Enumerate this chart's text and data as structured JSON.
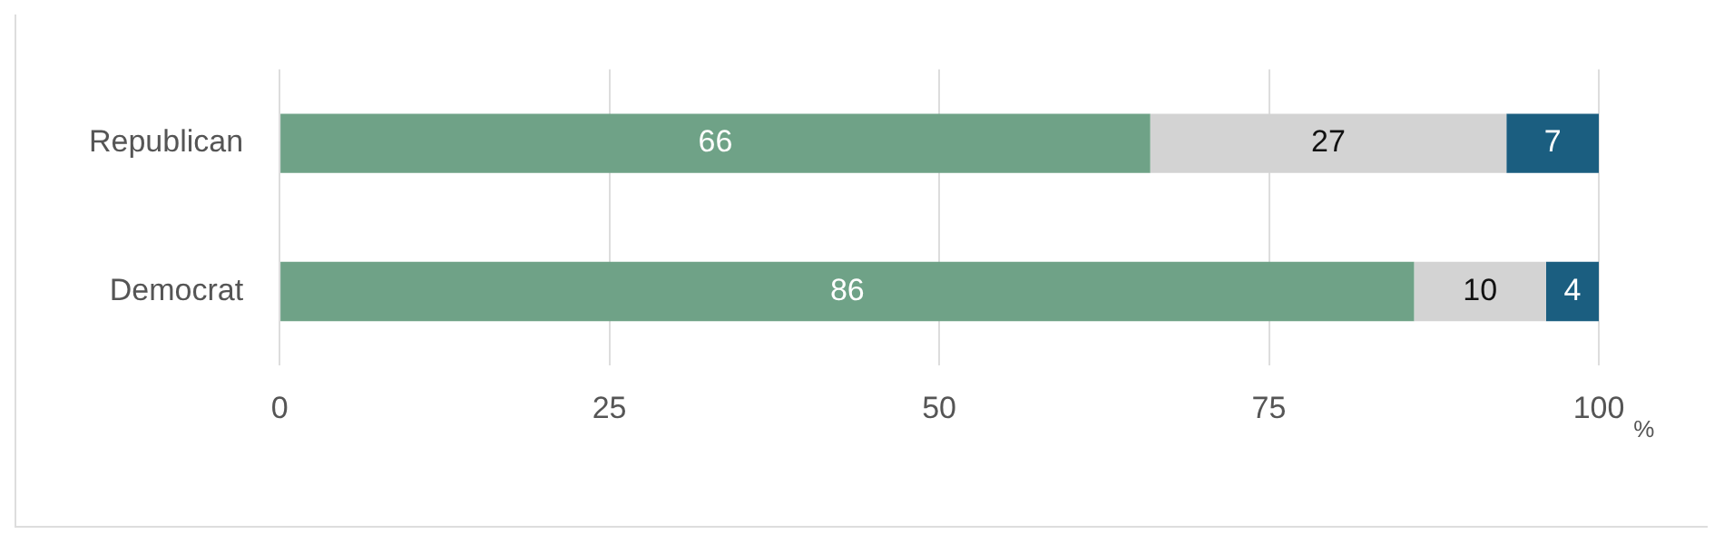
{
  "chart_data": {
    "type": "bar",
    "orientation": "horizontal",
    "stacked": true,
    "categories": [
      "Republican",
      "Democrat"
    ],
    "series": [
      {
        "color": "#6fa287",
        "values": [
          66,
          86
        ]
      },
      {
        "color": "#d3d3d3",
        "values": [
          27,
          10
        ]
      },
      {
        "color": "#1b5e80",
        "values": [
          7,
          4
        ]
      }
    ],
    "xlabel": "%",
    "xlim": [
      0,
      100
    ],
    "xticks": [
      0,
      25,
      50,
      75,
      100
    ],
    "grid": "x",
    "data_labels": true,
    "legend": false
  }
}
